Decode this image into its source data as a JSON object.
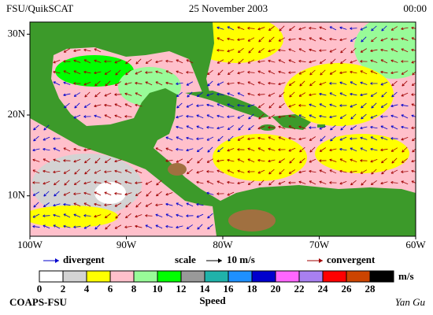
{
  "header": {
    "source": "FSU/QuikSCAT",
    "date": "25 November 2003",
    "time": "00:00"
  },
  "map": {
    "lat_range": [
      5,
      31.5
    ],
    "lon_range": [
      -100,
      -60
    ],
    "lat_ticks": [
      {
        "value": 30,
        "label": "30N"
      },
      {
        "value": 20,
        "label": "20N"
      },
      {
        "value": 10,
        "label": "10N"
      }
    ],
    "lon_ticks": [
      {
        "value": -100,
        "label": "100W"
      },
      {
        "value": -90,
        "label": "90W"
      },
      {
        "value": -80,
        "label": "80W"
      },
      {
        "value": -70,
        "label": "70W"
      },
      {
        "value": -60,
        "label": "60W"
      }
    ]
  },
  "legend": {
    "divergent": "divergent",
    "divergent_color": "#0000cc",
    "scale": "scale",
    "scale_value": "10 m/s",
    "convergent": "convergent",
    "convergent_color": "#a00000"
  },
  "speed_scale": {
    "title": "Speed",
    "unit": "m/s",
    "ticks": [
      0,
      2,
      4,
      6,
      8,
      10,
      12,
      14,
      16,
      18,
      20,
      22,
      24,
      26,
      28
    ],
    "colors": [
      "#ffffff",
      "#d3d3d3",
      "#ffff00",
      "#ffc0cb",
      "#98fb98",
      "#00ff00",
      "#999999",
      "#20b2aa",
      "#1e90ff",
      "#0000cd",
      "#ff66ff",
      "#a880f0",
      "#ff0000",
      "#cc4400",
      "#000000"
    ]
  },
  "footer": {
    "institution": "COAPS-FSU",
    "author": "Yan Gu"
  }
}
